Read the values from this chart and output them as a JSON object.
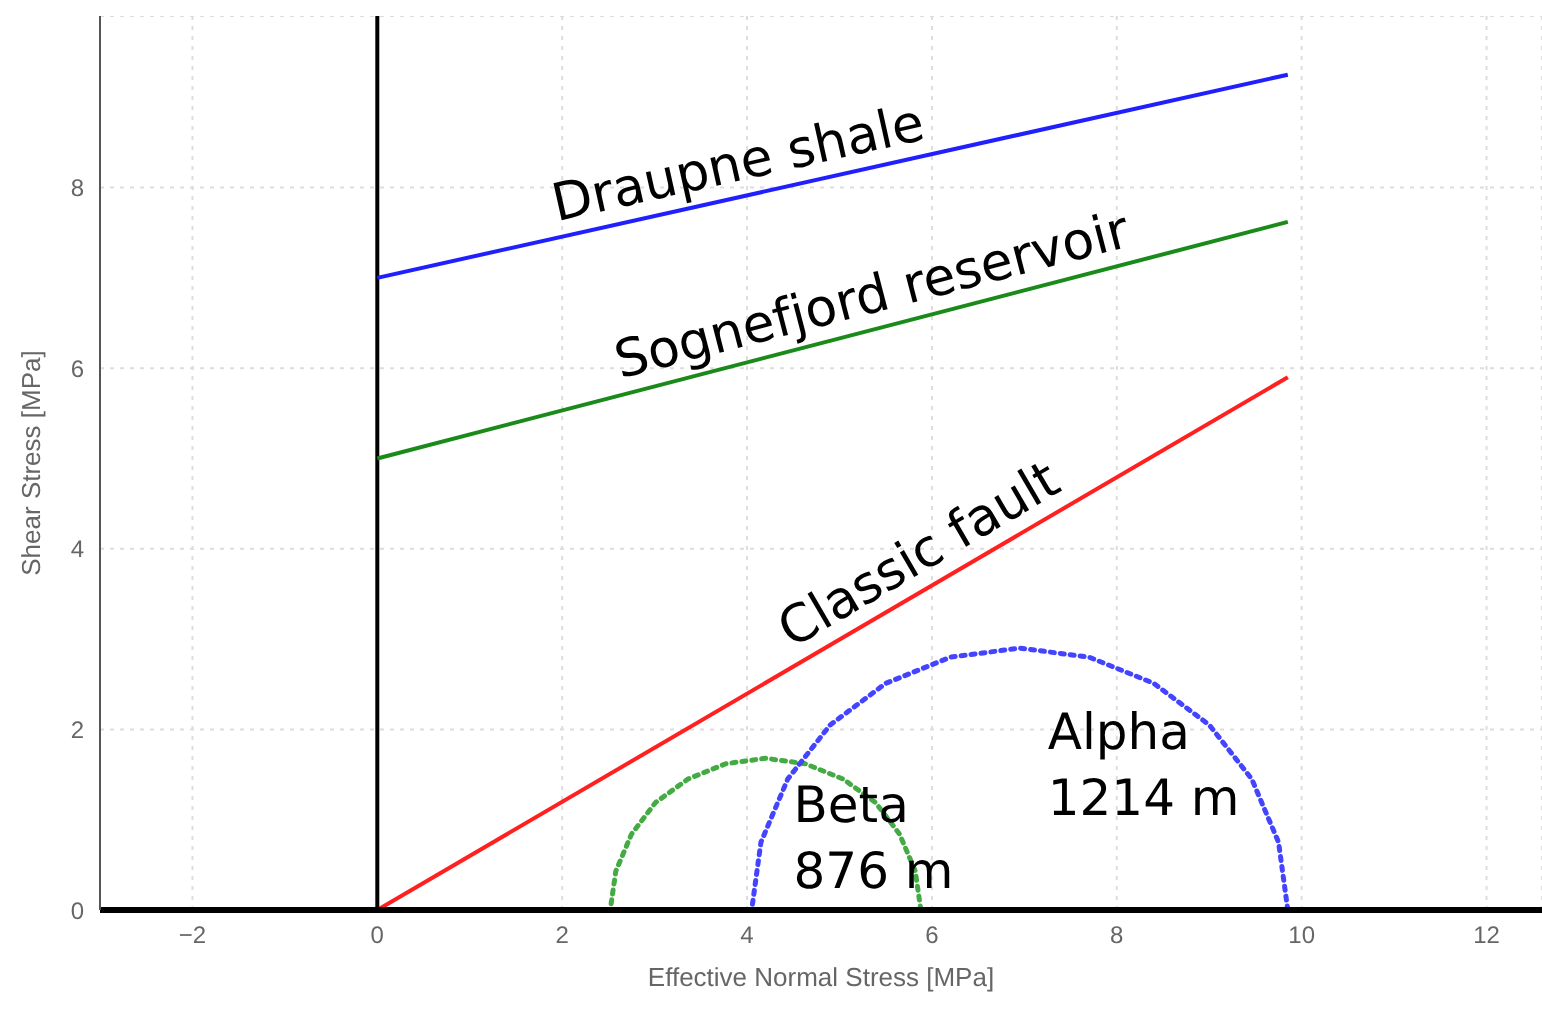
{
  "chart_data": {
    "type": "line",
    "xlabel": "Effective Normal Stress [MPa]",
    "ylabel": "Shear Stress [MPa]",
    "xlim": [
      -3,
      12.6
    ],
    "ylim": [
      0,
      9.9
    ],
    "xticks": [
      -2,
      0,
      2,
      4,
      6,
      8,
      10,
      12
    ],
    "yticks": [
      0,
      2,
      4,
      6,
      8
    ],
    "grid": true,
    "legend": false,
    "marker": "none",
    "series": [
      {
        "color": "#2020ff",
        "x": [
          0,
          9.85
        ],
        "values": [
          7,
          9.25
        ],
        "line_style": "solid"
      },
      {
        "color": "#1a8a1a",
        "x": [
          0,
          9.85
        ],
        "values": [
          5,
          7.62
        ],
        "line_style": "solid"
      },
      {
        "color": "#ff2020",
        "x": [
          0,
          9.85
        ],
        "values": [
          0,
          5.9
        ],
        "line_style": "solid"
      },
      {
        "name": "Beta 876 m",
        "color": "#44aa44",
        "x": [
          5.88,
          5.82,
          5.65,
          5.39,
          5.04,
          4.63,
          4.2,
          3.77,
          3.36,
          3.01,
          2.75,
          2.58,
          2.52
        ],
        "values": [
          0,
          0.43,
          0.84,
          1.19,
          1.45,
          1.62,
          1.68,
          1.62,
          1.45,
          1.19,
          0.84,
          0.43,
          0
        ],
        "line_style": "dotted"
      },
      {
        "name": "Alpha 1214 m",
        "color": "#4444ff",
        "x": [
          9.85,
          9.75,
          9.46,
          9.0,
          8.4,
          7.7,
          6.95,
          6.2,
          5.5,
          4.9,
          4.44,
          4.15,
          4.05
        ],
        "values": [
          0,
          0.75,
          1.45,
          2.05,
          2.51,
          2.8,
          2.9,
          2.8,
          2.51,
          2.05,
          1.45,
          0.75,
          0
        ],
        "line_style": "dotted"
      }
    ],
    "ref_lines": [
      {
        "axis": "x",
        "value": 0,
        "color": "#000000"
      }
    ],
    "annotations": [
      {
        "text": "Draupne shale",
        "x": 3.98,
        "y": 7.91
      },
      {
        "text": "Sognefjord reservoir",
        "x": 5.44,
        "y": 6.45
      },
      {
        "text": "Classic fault",
        "x": 6.04,
        "y": 3.62
      }
    ]
  }
}
